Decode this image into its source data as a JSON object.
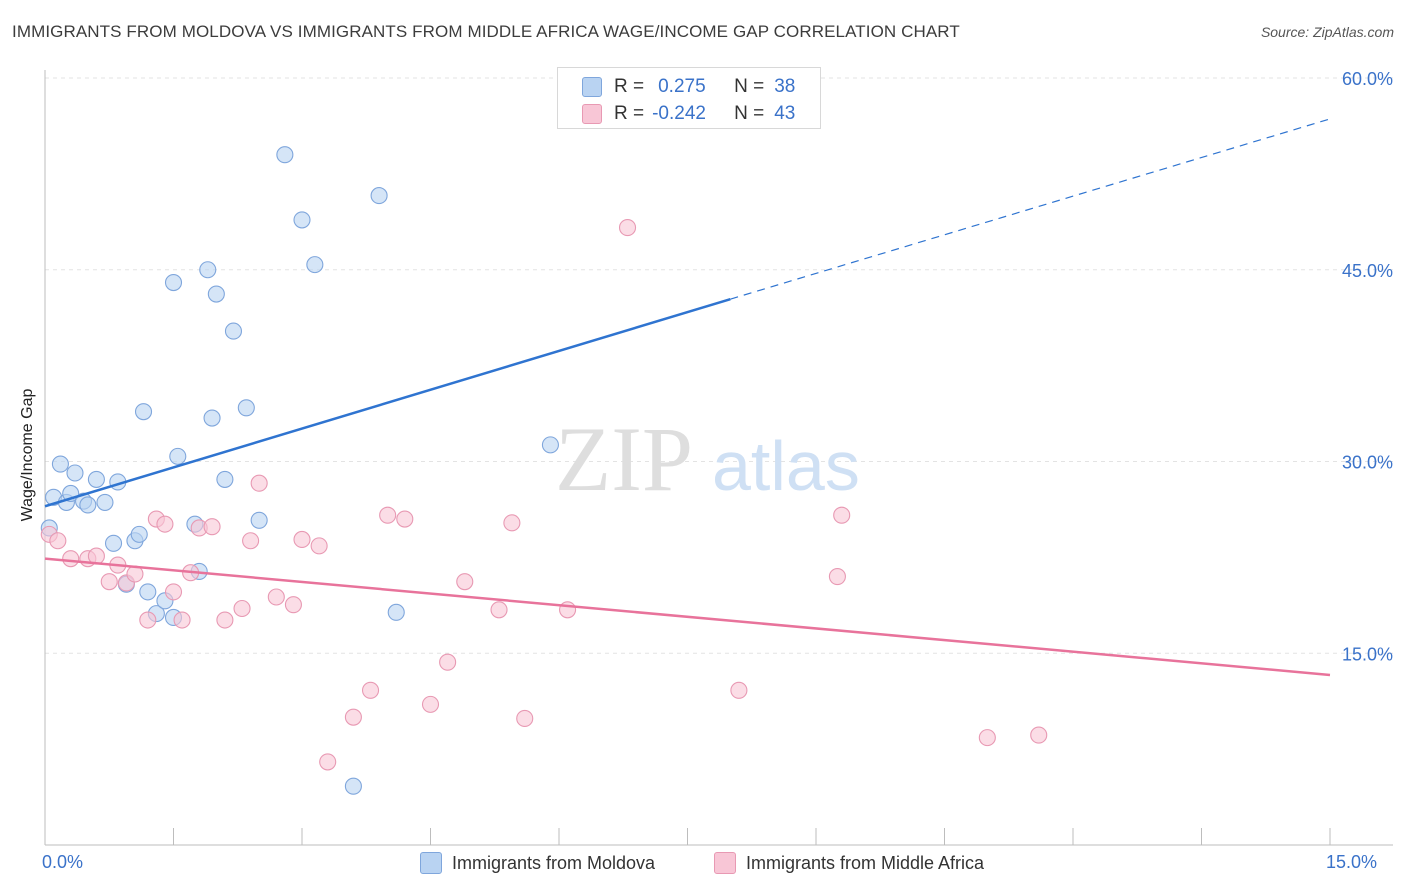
{
  "title": "IMMIGRANTS FROM MOLDOVA VS IMMIGRANTS FROM MIDDLE AFRICA WAGE/INCOME GAP CORRELATION CHART",
  "source": "Source: ZipAtlas.com",
  "watermark": {
    "zip": "ZIP",
    "atlas": "atlas"
  },
  "stats": [
    {
      "r_label": "R =",
      "r_value": "0.275",
      "n_label": "N =",
      "n_value": "38"
    },
    {
      "r_label": "R =",
      "r_value": "-0.242",
      "n_label": "N =",
      "n_value": "43"
    }
  ],
  "legend": [
    {
      "label": "Immigrants from Moldova"
    },
    {
      "label": "Immigrants from Middle Africa"
    }
  ],
  "colors": {
    "blue_fill": "#b9d3f2",
    "blue_stroke": "#7fa6dc",
    "blue_line": "#2f74d0",
    "pink_fill": "#f8c6d6",
    "pink_stroke": "#e899b3",
    "pink_line": "#e8739b",
    "axis_text": "#3a72c9",
    "grid": "#e3e3e3"
  },
  "chart_data": {
    "type": "scatter",
    "title": "IMMIGRANTS FROM MOLDOVA VS IMMIGRANTS FROM MIDDLE AFRICA WAGE/INCOME GAP CORRELATION CHART",
    "xlabel": "",
    "ylabel": "Wage/Income Gap",
    "xlim": [
      0,
      15
    ],
    "ylim": [
      0,
      60
    ],
    "x_tick_labels": [
      "0.0%",
      "15.0%"
    ],
    "y_ticks": [
      15,
      30,
      45,
      60
    ],
    "y_tick_labels": [
      "15.0%",
      "30.0%",
      "45.0%",
      "60.0%"
    ],
    "grid": true,
    "series": [
      {
        "name": "Immigrants from Moldova",
        "color": "#7fa6dc",
        "points": [
          [
            0.05,
            24.8
          ],
          [
            0.1,
            27.2
          ],
          [
            0.18,
            29.8
          ],
          [
            0.25,
            26.8
          ],
          [
            0.3,
            27.5
          ],
          [
            0.35,
            29.1
          ],
          [
            0.45,
            26.9
          ],
          [
            0.5,
            26.6
          ],
          [
            0.6,
            28.6
          ],
          [
            0.7,
            26.8
          ],
          [
            0.8,
            23.6
          ],
          [
            0.85,
            28.4
          ],
          [
            0.95,
            20.4
          ],
          [
            1.05,
            23.8
          ],
          [
            1.1,
            24.3
          ],
          [
            1.15,
            33.9
          ],
          [
            1.2,
            19.8
          ],
          [
            1.3,
            18.1
          ],
          [
            1.4,
            19.1
          ],
          [
            1.5,
            44.0
          ],
          [
            1.55,
            30.4
          ],
          [
            1.75,
            25.1
          ],
          [
            1.8,
            21.4
          ],
          [
            1.9,
            45.0
          ],
          [
            1.95,
            33.4
          ],
          [
            2.0,
            43.1
          ],
          [
            2.1,
            28.6
          ],
          [
            2.2,
            40.2
          ],
          [
            2.35,
            34.2
          ],
          [
            2.5,
            25.4
          ],
          [
            2.8,
            54.0
          ],
          [
            3.0,
            48.9
          ],
          [
            3.15,
            45.4
          ],
          [
            3.6,
            4.6
          ],
          [
            3.9,
            50.8
          ],
          [
            4.1,
            18.2
          ],
          [
            5.9,
            31.3
          ],
          [
            1.5,
            17.8
          ]
        ],
        "trend": {
          "x_start": 0,
          "y_start": 26.5,
          "x_solid_end": 8.0,
          "y_solid_end": 42.7,
          "x_end": 15.0,
          "y_end": 56.8
        }
      },
      {
        "name": "Immigrants from Middle Africa",
        "color": "#e899b3",
        "points": [
          [
            0.05,
            24.3
          ],
          [
            0.15,
            23.8
          ],
          [
            0.3,
            22.4
          ],
          [
            0.5,
            22.4
          ],
          [
            0.6,
            22.6
          ],
          [
            0.75,
            20.6
          ],
          [
            0.85,
            21.9
          ],
          [
            0.95,
            20.5
          ],
          [
            1.05,
            21.2
          ],
          [
            1.2,
            17.6
          ],
          [
            1.3,
            25.5
          ],
          [
            1.4,
            25.1
          ],
          [
            1.5,
            19.8
          ],
          [
            1.6,
            17.6
          ],
          [
            1.7,
            21.3
          ],
          [
            1.8,
            24.8
          ],
          [
            1.95,
            24.9
          ],
          [
            2.1,
            17.6
          ],
          [
            2.3,
            18.5
          ],
          [
            2.4,
            23.8
          ],
          [
            2.5,
            28.3
          ],
          [
            2.7,
            19.4
          ],
          [
            2.9,
            18.8
          ],
          [
            3.0,
            23.9
          ],
          [
            3.2,
            23.4
          ],
          [
            3.3,
            6.5
          ],
          [
            3.6,
            10.0
          ],
          [
            3.8,
            12.1
          ],
          [
            4.0,
            25.8
          ],
          [
            4.2,
            25.5
          ],
          [
            4.5,
            11.0
          ],
          [
            4.7,
            14.3
          ],
          [
            4.9,
            20.6
          ],
          [
            5.3,
            18.4
          ],
          [
            5.45,
            25.2
          ],
          [
            5.6,
            9.9
          ],
          [
            6.1,
            18.4
          ],
          [
            6.8,
            48.3
          ],
          [
            8.1,
            12.1
          ],
          [
            9.25,
            21.0
          ],
          [
            9.3,
            25.8
          ],
          [
            11.0,
            8.4
          ],
          [
            11.6,
            8.6
          ]
        ],
        "trend": {
          "x_start": 0,
          "y_start": 22.4,
          "x_end": 15.0,
          "y_end": 13.3
        }
      }
    ]
  }
}
